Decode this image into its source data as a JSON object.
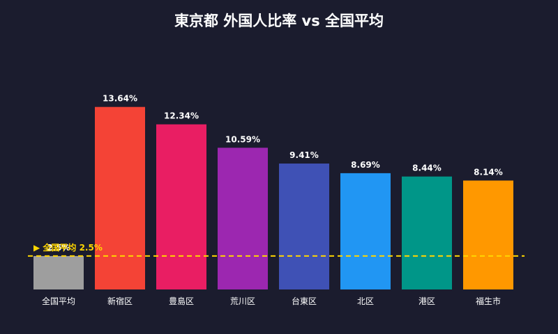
{
  "chart_data": {
    "type": "bar",
    "title": "東京都 外国人比率 vs 全国平均",
    "categories": [
      "全国平均",
      "新宿区",
      "豊島区",
      "荒川区",
      "台東区",
      "北区",
      "港区",
      "福生市"
    ],
    "values": [
      2.5,
      13.64,
      12.34,
      10.59,
      9.41,
      8.69,
      8.44,
      8.14
    ],
    "value_labels": [
      "2.5%",
      "13.64%",
      "12.34%",
      "10.59%",
      "9.41%",
      "8.69%",
      "8.44%",
      "8.14%"
    ],
    "colors": [
      "#9e9e9e",
      "#f44336",
      "#e91e63",
      "#9c27b0",
      "#3f51b5",
      "#2196f3",
      "#009688",
      "#ff9800"
    ],
    "reference_line": {
      "value": 2.5,
      "label": "▶ 全国平均 2.5%",
      "color": "#ffd600",
      "style": "dashed"
    },
    "ylim": [
      0,
      15.6
    ],
    "xlabel": "",
    "ylabel": "",
    "grid": false
  }
}
